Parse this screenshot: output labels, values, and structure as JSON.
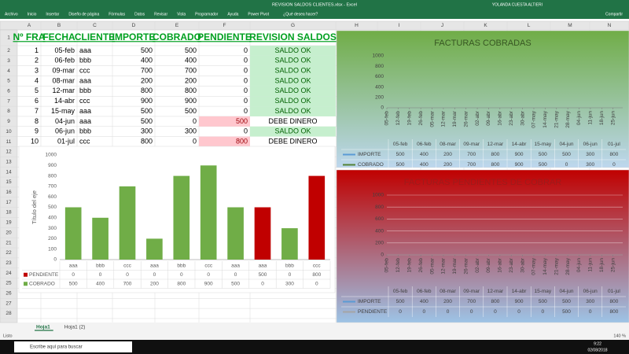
{
  "window": {
    "title": "REVISION SALDOS CLIENTES.xlsx - Excel",
    "user": "YOLANDA CUESTA ALTIERI"
  },
  "ribbon": {
    "tabs": [
      "Archivo",
      "Inicio",
      "Insertar",
      "Diseño de página",
      "Fórmulas",
      "Datos",
      "Revisar",
      "Vista",
      "Programador",
      "Ayuda",
      "Power Pivot"
    ],
    "search": "¿Qué desea hacer?",
    "share": "Compartir"
  },
  "grid": {
    "columns": [
      "A",
      "B",
      "C",
      "D",
      "E",
      "F",
      "G",
      "H",
      "I",
      "J",
      "K",
      "L",
      "M",
      "N"
    ],
    "rows": [
      1,
      2,
      3,
      4,
      5,
      6,
      7,
      8,
      9,
      10,
      11,
      12,
      13,
      14,
      15,
      16,
      17,
      18,
      19,
      20,
      21,
      22,
      23,
      24,
      25,
      26,
      27,
      28
    ]
  },
  "table": {
    "header": [
      "Nº FRA",
      "FECHA",
      "CLIENTE",
      "IMPORTE",
      "COBRADO",
      "PENDIENTE",
      "REVISION SALDOS"
    ],
    "rows": [
      [
        1,
        "05-feb",
        "aaa",
        500,
        500,
        0,
        "SALDO OK"
      ],
      [
        2,
        "06-feb",
        "bbb",
        400,
        400,
        0,
        "SALDO OK"
      ],
      [
        3,
        "09-mar",
        "ccc",
        700,
        700,
        0,
        "SALDO OK"
      ],
      [
        4,
        "08-mar",
        "aaa",
        200,
        200,
        0,
        "SALDO OK"
      ],
      [
        5,
        "12-mar",
        "bbb",
        800,
        800,
        0,
        "SALDO OK"
      ],
      [
        6,
        "14-abr",
        "ccc",
        900,
        900,
        0,
        "SALDO OK"
      ],
      [
        7,
        "15-may",
        "aaa",
        500,
        500,
        0,
        "SALDO OK"
      ],
      [
        8,
        "04-jun",
        "aaa",
        500,
        0,
        500,
        "DEBE DINERO"
      ],
      [
        9,
        "06-jun",
        "bbb",
        300,
        300,
        0,
        "SALDO OK"
      ],
      [
        10,
        "01-jul",
        "ccc",
        800,
        0,
        800,
        "DEBE DINERO"
      ]
    ]
  },
  "chart_data": [
    {
      "type": "bar",
      "stacked": true,
      "y_label": "Título del eje",
      "categories": [
        "aaa",
        "bbb",
        "ccc",
        "aaa",
        "bbb",
        "ccc",
        "aaa",
        "aaa",
        "bbb",
        "ccc"
      ],
      "series": [
        {
          "name": "PENDIENTE",
          "color": "#c00000",
          "values": [
            0,
            0,
            0,
            0,
            0,
            0,
            0,
            500,
            0,
            800
          ]
        },
        {
          "name": "COBRADO",
          "color": "#70ad47",
          "values": [
            500,
            400,
            700,
            200,
            800,
            900,
            500,
            0,
            300,
            0
          ]
        }
      ],
      "ylim": [
        0,
        1000
      ],
      "yticks": [
        0,
        100,
        200,
        300,
        400,
        500,
        600,
        700,
        800,
        900,
        1000
      ],
      "grid": false
    },
    {
      "type": "line",
      "title": "FACTURAS COBRADAS",
      "title_color": "#375623",
      "background": [
        "#70ad47",
        "#bdd7ee"
      ],
      "x": [
        36,
        37,
        67,
        68,
        71,
        104,
        135,
        155,
        157,
        182
      ],
      "x_labels": [
        "05-feb",
        "06-feb",
        "08-mar",
        "09-mar",
        "12-mar",
        "14-abr",
        "15-may",
        "04-jun",
        "06-jun",
        "01-jul"
      ],
      "xlim": [
        36,
        182
      ],
      "xticks": [
        {
          "value": 36,
          "label": "05-feb"
        },
        {
          "value": 43,
          "label": "12-feb"
        },
        {
          "value": 50,
          "label": "19-feb"
        },
        {
          "value": 57,
          "label": "26-feb"
        },
        {
          "value": 64,
          "label": "05-mar"
        },
        {
          "value": 71,
          "label": "12-mar"
        },
        {
          "value": 78,
          "label": "19-mar"
        },
        {
          "value": 85,
          "label": "26-mar"
        },
        {
          "value": 92,
          "label": "02-abr"
        },
        {
          "value": 99,
          "label": "09-abr"
        },
        {
          "value": 106,
          "label": "16-abr"
        },
        {
          "value": 113,
          "label": "23-abr"
        },
        {
          "value": 120,
          "label": "30-abr"
        },
        {
          "value": 127,
          "label": "07-may"
        },
        {
          "value": 134,
          "label": "14-may"
        },
        {
          "value": 141,
          "label": "21-may"
        },
        {
          "value": 148,
          "label": "28-may"
        },
        {
          "value": 155,
          "label": "04-jun"
        },
        {
          "value": 162,
          "label": "11-jun"
        },
        {
          "value": 169,
          "label": "18-jun"
        },
        {
          "value": 176,
          "label": "25-jun"
        }
      ],
      "ylim": [
        0,
        1000
      ],
      "yticks": [
        0,
        200,
        400,
        600,
        800,
        1000
      ],
      "grid": false,
      "series": [
        {
          "name": "IMPORTE",
          "color": "#5b9bd5",
          "values": [
            500,
            400,
            200,
            700,
            800,
            900,
            500,
            500,
            300,
            800
          ]
        },
        {
          "name": "COBRADO",
          "color": "#548235",
          "values": [
            500,
            400,
            200,
            700,
            800,
            900,
            500,
            0,
            300,
            0
          ]
        }
      ]
    },
    {
      "type": "line",
      "title": "FACTURAS PENDIENTES DE COBRAR",
      "title_color": "#9e1b1b",
      "background": [
        "#c00000",
        "#9dc3e6"
      ],
      "x": [
        36,
        37,
        67,
        68,
        71,
        104,
        135,
        155,
        157,
        182
      ],
      "x_labels": [
        "05-feb",
        "06-feb",
        "08-mar",
        "09-mar",
        "12-mar",
        "14-abr",
        "15-may",
        "04-jun",
        "06-jun",
        "01-jul"
      ],
      "xlim": [
        36,
        182
      ],
      "xticks": [
        {
          "value": 36,
          "label": "05-feb"
        },
        {
          "value": 43,
          "label": "12-feb"
        },
        {
          "value": 50,
          "label": "19-feb"
        },
        {
          "value": 57,
          "label": "26-feb"
        },
        {
          "value": 64,
          "label": "05-mar"
        },
        {
          "value": 71,
          "label": "12-mar"
        },
        {
          "value": 78,
          "label": "19-mar"
        },
        {
          "value": 85,
          "label": "26-mar"
        },
        {
          "value": 92,
          "label": "02-abr"
        },
        {
          "value": 99,
          "label": "09-abr"
        },
        {
          "value": 106,
          "label": "16-abr"
        },
        {
          "value": 113,
          "label": "23-abr"
        },
        {
          "value": 120,
          "label": "30-abr"
        },
        {
          "value": 127,
          "label": "07-may"
        },
        {
          "value": 134,
          "label": "14-may"
        },
        {
          "value": 141,
          "label": "21-may"
        },
        {
          "value": 148,
          "label": "28-may"
        },
        {
          "value": 155,
          "label": "04-jun"
        },
        {
          "value": 162,
          "label": "11-jun"
        },
        {
          "value": 169,
          "label": "18-jun"
        },
        {
          "value": 176,
          "label": "25-jun"
        }
      ],
      "ylim": [
        0,
        1000
      ],
      "yticks": [
        0,
        200,
        400,
        600,
        800,
        1000
      ],
      "grid": true,
      "series": [
        {
          "name": "IMPORTE",
          "color": "#5b9bd5",
          "values": [
            500,
            400,
            200,
            700,
            800,
            900,
            500,
            500,
            300,
            800
          ]
        },
        {
          "name": "PENDIENTE",
          "color": "#a5a5a5",
          "values": [
            0,
            0,
            0,
            0,
            0,
            0,
            0,
            500,
            0,
            800
          ]
        }
      ]
    }
  ],
  "sheets": [
    "Hoja1",
    "Hoja1 (2)"
  ],
  "status": {
    "mode": "Listo",
    "zoom": "140 %"
  },
  "taskbar": {
    "search": "Escribe aquí para buscar",
    "time": "9:22",
    "date": "02/08/2018"
  }
}
